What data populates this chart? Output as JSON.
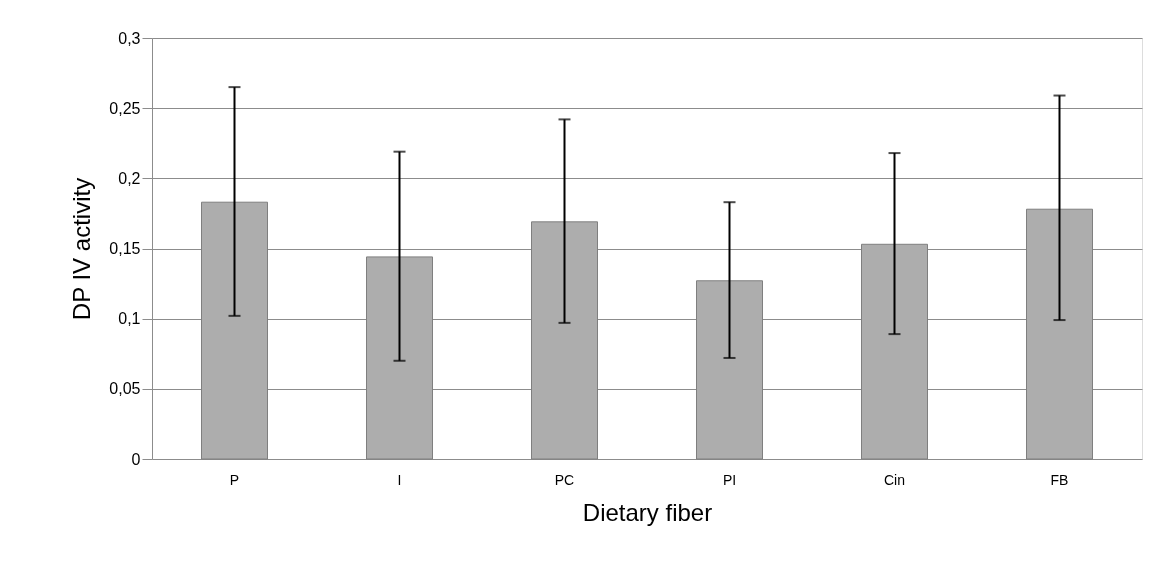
{
  "chart_data": {
    "type": "bar",
    "xlabel": "Dietary fiber",
    "ylabel": "DP IV activity",
    "categories": [
      "P",
      "I",
      "PC",
      "PI",
      "Cin",
      "FB"
    ],
    "series": [
      {
        "color": "#adadad",
        "values": [
          0.183,
          0.144,
          0.169,
          0.127,
          0.153,
          0.178
        ],
        "errors": [
          [
            0.102,
            0.265
          ],
          [
            0.07,
            0.219
          ],
          [
            0.097,
            0.242
          ],
          [
            0.072,
            0.183
          ],
          [
            0.089,
            0.218
          ],
          [
            0.099,
            0.259
          ]
        ]
      }
    ],
    "ylim": [
      0,
      0.3
    ],
    "yticks": [
      {
        "value": 0,
        "label": "0"
      },
      {
        "value": 0.05,
        "label": "0,05"
      },
      {
        "value": 0.1,
        "label": "0,1"
      },
      {
        "value": 0.15,
        "label": "0,15"
      },
      {
        "value": 0.2,
        "label": "0,2"
      },
      {
        "value": 0.25,
        "label": "0,25"
      },
      {
        "value": 0.3,
        "label": "0,3"
      }
    ],
    "grid": "y"
  }
}
